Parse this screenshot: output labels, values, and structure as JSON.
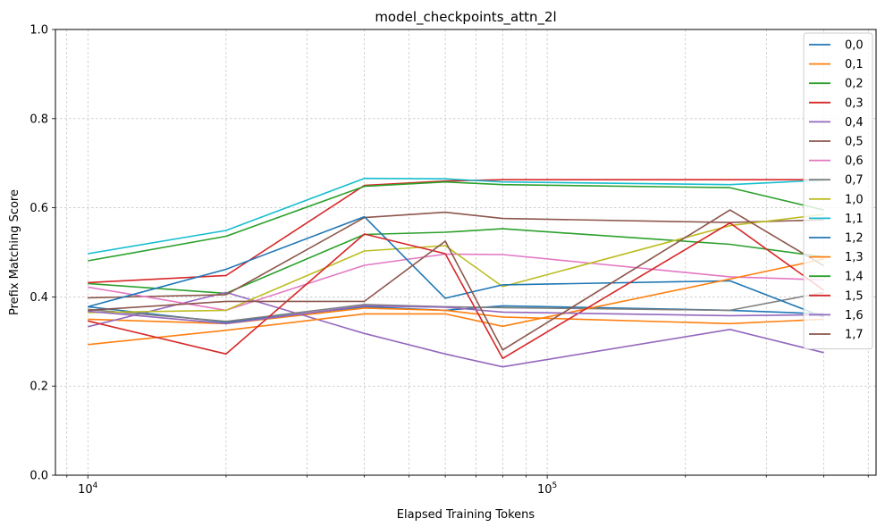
{
  "chart_data": {
    "type": "line",
    "title": "model_checkpoints_attn_2l",
    "xlabel": "Elapsed Training Tokens",
    "ylabel": "Prefix Matching Score",
    "xscale": "log",
    "xlim": [
      8500,
      520000
    ],
    "ylim": [
      0,
      1
    ],
    "grid": true,
    "legend_position": "top-right",
    "x_ticks": [
      {
        "value": 10000,
        "base": "10",
        "exp": "4"
      },
      {
        "value": 100000,
        "base": "10",
        "exp": "5"
      }
    ],
    "y_ticks": [
      "0.0",
      "0.2",
      "0.4",
      "0.6",
      "0.8",
      "1.0"
    ],
    "x": [
      10000,
      20000,
      40000,
      60000,
      80000,
      250000,
      400000
    ],
    "series": [
      {
        "name": "0,0",
        "color": "#1f77b4",
        "values": [
          0.378,
          0.343,
          0.378,
          0.37,
          0.38,
          0.37,
          0.362
        ]
      },
      {
        "name": "0,1",
        "color": "#ff7f0e",
        "values": [
          0.35,
          0.34,
          0.375,
          0.37,
          0.355,
          0.34,
          0.35
        ]
      },
      {
        "name": "0,2",
        "color": "#2ca02c",
        "values": [
          0.43,
          0.408,
          0.54,
          0.545,
          0.553,
          0.518,
          0.49
        ]
      },
      {
        "name": "0,3",
        "color": "#d62728",
        "values": [
          0.432,
          0.448,
          0.65,
          0.66,
          0.663,
          0.663,
          0.663
        ]
      },
      {
        "name": "0,4",
        "color": "#9467bd",
        "values": [
          0.333,
          0.41,
          0.318,
          0.272,
          0.243,
          0.327,
          0.275
        ]
      },
      {
        "name": "0,5",
        "color": "#8c564b",
        "values": [
          0.398,
          0.405,
          0.578,
          0.59,
          0.576,
          0.567,
          0.573
        ]
      },
      {
        "name": "0,6",
        "color": "#e377c2",
        "values": [
          0.422,
          0.37,
          0.471,
          0.496,
          0.495,
          0.445,
          0.438
        ]
      },
      {
        "name": "0,7",
        "color": "#7f7f7f",
        "values": [
          0.372,
          0.345,
          0.383,
          0.378,
          0.376,
          0.37,
          0.41
        ]
      },
      {
        "name": "1,0",
        "color": "#bcbd22",
        "values": [
          0.365,
          0.37,
          0.503,
          0.515,
          0.423,
          0.56,
          0.585
        ]
      },
      {
        "name": "1,1",
        "color": "#17becf",
        "values": [
          0.497,
          0.549,
          0.666,
          0.665,
          0.658,
          0.652,
          0.662
        ]
      },
      {
        "name": "1,2",
        "color": "#1f77b4",
        "values": [
          0.378,
          0.462,
          0.58,
          0.397,
          0.427,
          0.436,
          0.355
        ]
      },
      {
        "name": "1,3",
        "color": "#ff7f0e",
        "values": [
          0.293,
          0.325,
          0.362,
          0.362,
          0.334,
          0.44,
          0.485
        ]
      },
      {
        "name": "1,4",
        "color": "#2ca02c",
        "values": [
          0.481,
          0.536,
          0.648,
          0.658,
          0.652,
          0.645,
          0.595
        ]
      },
      {
        "name": "1,5",
        "color": "#d62728",
        "values": [
          0.346,
          0.272,
          0.541,
          0.497,
          0.262,
          0.566,
          0.415
        ]
      },
      {
        "name": "1,6",
        "color": "#9467bd",
        "values": [
          0.368,
          0.34,
          0.38,
          0.377,
          0.366,
          0.358,
          0.36
        ]
      },
      {
        "name": "1,7",
        "color": "#8c564b",
        "values": [
          0.37,
          0.39,
          0.39,
          0.525,
          0.281,
          0.595,
          0.47
        ]
      }
    ]
  }
}
